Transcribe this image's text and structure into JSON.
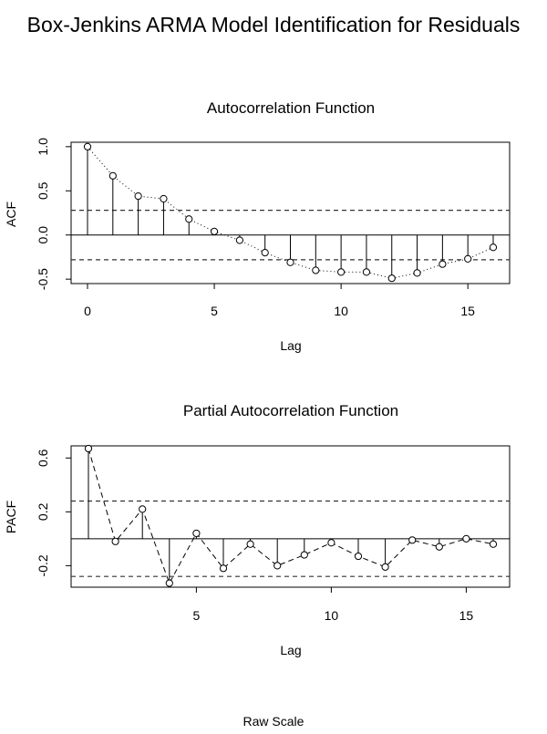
{
  "title": "Box-Jenkins ARMA Model Identification for Residuals",
  "footer": "Raw Scale",
  "chart_data": [
    {
      "type": "line",
      "title": "Autocorrelation Function",
      "xlabel": "Lag",
      "ylabel": "ACF",
      "xlim": [
        0,
        16
      ],
      "ylim": [
        -0.55,
        1.05
      ],
      "x_ticks": [
        0,
        5,
        10,
        15
      ],
      "x_tick_labels": [
        "0",
        "5",
        "10",
        "15"
      ],
      "y_ticks": [
        1.0,
        0.5,
        0.0,
        -0.5
      ],
      "y_tick_labels": [
        "1.0",
        "0.5",
        "0.0",
        "-0.5"
      ],
      "confidence_bounds": [
        0.28,
        -0.28
      ],
      "series": [
        {
          "x": [
            0,
            1,
            2,
            3,
            4,
            5,
            6,
            7,
            8,
            9,
            10,
            11,
            12,
            13,
            14,
            15,
            16
          ],
          "values": [
            1.0,
            0.67,
            0.44,
            0.41,
            0.18,
            0.04,
            -0.06,
            -0.2,
            -0.31,
            -0.4,
            -0.42,
            -0.42,
            -0.49,
            -0.43,
            -0.33,
            -0.27,
            -0.14
          ]
        }
      ],
      "connector_style": "dotted",
      "grid": false
    },
    {
      "type": "line",
      "title": "Partial Autocorrelation Function",
      "xlabel": "Lag",
      "ylabel": "PACF",
      "xlim": [
        1,
        16
      ],
      "ylim": [
        -0.36,
        0.69
      ],
      "x_ticks": [
        5,
        10,
        15
      ],
      "x_tick_labels": [
        "5",
        "10",
        "15"
      ],
      "y_ticks": [
        0.6,
        0.2,
        -0.2
      ],
      "y_tick_labels": [
        "0.6",
        "0.2",
        "-0.2"
      ],
      "confidence_bounds": [
        0.28,
        -0.28
      ],
      "series": [
        {
          "x": [
            1,
            2,
            3,
            4,
            5,
            6,
            7,
            8,
            9,
            10,
            11,
            12,
            13,
            14,
            15,
            16
          ],
          "values": [
            0.67,
            -0.02,
            0.22,
            -0.33,
            0.04,
            -0.22,
            -0.04,
            -0.2,
            -0.12,
            -0.03,
            -0.13,
            -0.21,
            -0.01,
            -0.06,
            0.0,
            -0.04
          ]
        }
      ],
      "connector_style": "dashed",
      "grid": false
    }
  ]
}
